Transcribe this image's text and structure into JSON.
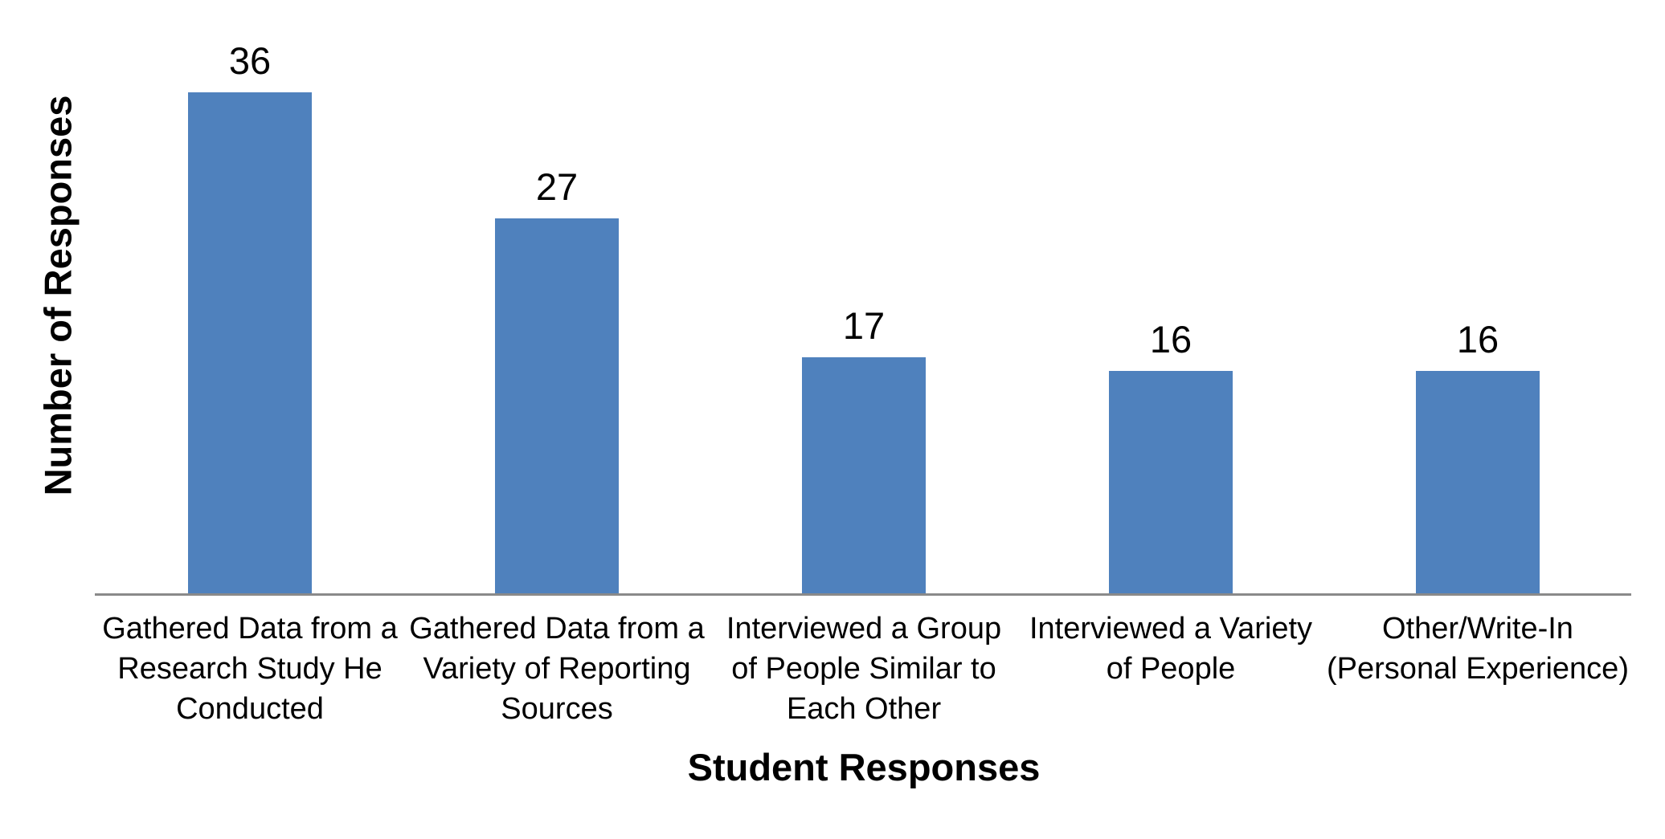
{
  "chart_data": {
    "type": "bar",
    "title": "",
    "xlabel": "Student Responses",
    "ylabel": "Number of Responses",
    "categories": [
      "Gathered Data from a Research Study He Conducted",
      "Gathered Data from a Variety of Reporting Sources",
      "Interviewed a Group of People Similar to Each Other",
      "Interviewed a Variety of People",
      "Other/Write-In (Personal Experience)"
    ],
    "category_lines": [
      [
        "Gathered Data from a",
        "Research Study He",
        "Conducted"
      ],
      [
        "Gathered Data from a",
        "Variety of Reporting",
        "Sources"
      ],
      [
        "Interviewed a Group",
        "of People Similar to",
        "Each Other"
      ],
      [
        "Interviewed a Variety",
        "of People"
      ],
      [
        "Other/Write-In",
        "(Personal Experience)"
      ]
    ],
    "values": [
      36,
      27,
      17,
      16,
      16
    ],
    "data_labels_shown": true,
    "ylim": [
      0,
      40
    ],
    "y_axis_ticks_shown": false,
    "grid": false,
    "legend": "none",
    "bar_color": "#4F81BD",
    "axis_line_color": "#8A8A8A",
    "text_color": "#000000",
    "background_color": "#FFFFFF"
  }
}
